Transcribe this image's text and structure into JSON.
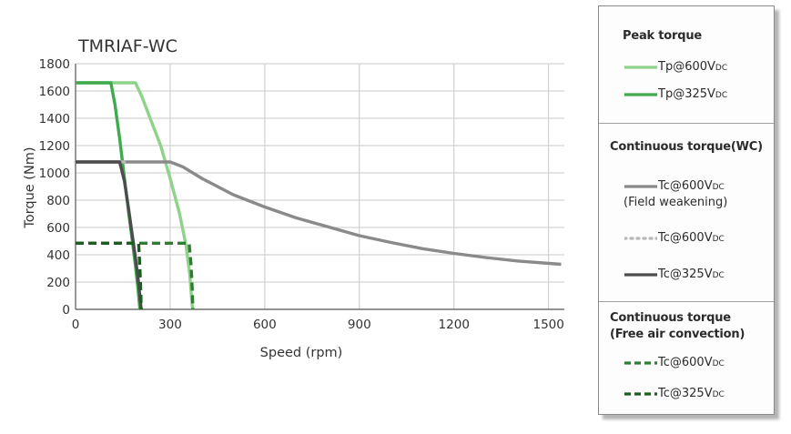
{
  "chart_data": {
    "type": "line",
    "title": "TMRIAF-WC",
    "xlabel": "Speed (rpm)",
    "ylabel": "Torque (Nm)",
    "xlim": [
      0,
      1550
    ],
    "ylim": [
      0,
      1800
    ],
    "xticks": [
      0,
      300,
      600,
      900,
      1200,
      1500
    ],
    "yticks": [
      0,
      200,
      400,
      600,
      800,
      1000,
      1200,
      1400,
      1600,
      1800
    ],
    "grid": true,
    "legend_position": "right",
    "series": [
      {
        "key": "tp600",
        "name": "Tp@600VDC",
        "group": "Peak torque",
        "color": "#8ed38a",
        "style": "solid",
        "points": [
          [
            0,
            1660
          ],
          [
            190,
            1660
          ],
          [
            210,
            1560
          ],
          [
            240,
            1380
          ],
          [
            270,
            1200
          ],
          [
            300,
            960
          ],
          [
            330,
            700
          ],
          [
            350,
            470
          ],
          [
            362,
            260
          ],
          [
            368,
            80
          ],
          [
            371,
            0
          ]
        ]
      },
      {
        "key": "tp325",
        "name": "Tp@325VDC",
        "group": "Peak torque",
        "color": "#3faa4e",
        "style": "solid",
        "points": [
          [
            0,
            1660
          ],
          [
            112,
            1660
          ],
          [
            125,
            1500
          ],
          [
            140,
            1250
          ],
          [
            155,
            960
          ],
          [
            170,
            680
          ],
          [
            180,
            500
          ],
          [
            190,
            320
          ],
          [
            198,
            150
          ],
          [
            204,
            0
          ]
        ]
      },
      {
        "key": "tc600_fw",
        "name": "Tc@600VDC (Field weakening)",
        "group": "Continuous torque(WC)",
        "color": "#8a8a8a",
        "style": "solid",
        "points": [
          [
            0,
            1080
          ],
          [
            300,
            1080
          ],
          [
            340,
            1045
          ],
          [
            400,
            960
          ],
          [
            500,
            840
          ],
          [
            600,
            750
          ],
          [
            700,
            670
          ],
          [
            800,
            605
          ],
          [
            900,
            540
          ],
          [
            1000,
            490
          ],
          [
            1100,
            445
          ],
          [
            1200,
            410
          ],
          [
            1300,
            380
          ],
          [
            1400,
            355
          ],
          [
            1540,
            330
          ]
        ]
      },
      {
        "key": "tc600",
        "name": "Tc@600VDC",
        "group": "Continuous torque(WC)",
        "color": "#b8b8b8",
        "style": "dotted",
        "points": [
          [
            0,
            1080
          ],
          [
            160,
            1080
          ]
        ]
      },
      {
        "key": "tc325",
        "name": "Tc@325VDC",
        "group": "Continuous torque(WC)",
        "color": "#4c4c4c",
        "style": "solid",
        "points": [
          [
            0,
            1080
          ],
          [
            140,
            1080
          ],
          [
            155,
            940
          ],
          [
            168,
            740
          ],
          [
            180,
            540
          ],
          [
            190,
            380
          ],
          [
            200,
            190
          ],
          [
            208,
            0
          ]
        ]
      },
      {
        "key": "tcf600",
        "name": "Tc@600VDC",
        "group": "Continuous torque (Free air convection)",
        "color": "#2e7d32",
        "style": "dashed",
        "points": [
          [
            0,
            485
          ],
          [
            360,
            485
          ],
          [
            366,
            330
          ],
          [
            370,
            150
          ],
          [
            372,
            0
          ]
        ]
      },
      {
        "key": "tcf325",
        "name": "Tc@325VDC",
        "group": "Continuous torque (Free air convection)",
        "color": "#1b5e20",
        "style": "dashed",
        "points": [
          [
            0,
            485
          ],
          [
            200,
            485
          ],
          [
            204,
            300
          ],
          [
            207,
            120
          ],
          [
            208,
            0
          ]
        ]
      }
    ]
  },
  "legend": {
    "sections": [
      {
        "title": [
          "Peak torque"
        ],
        "items": [
          {
            "series": "tp600",
            "label": "Tp@600V",
            "sub": "DC"
          },
          {
            "series": "tp325",
            "label": "Tp@325V",
            "sub": "DC"
          }
        ]
      },
      {
        "title": [
          "Continuous torque(WC)"
        ],
        "items": [
          {
            "series": "tc600_fw",
            "label": "Tc@600V",
            "sub": "DC",
            "note": "(Field weakening)"
          },
          {
            "series": "tc600",
            "label": "Tc@600V",
            "sub": "DC"
          },
          {
            "series": "tc325",
            "label": "Tc@325V",
            "sub": "DC"
          }
        ]
      },
      {
        "title": [
          "Continuous torque",
          "(Free air convection)"
        ],
        "items": [
          {
            "series": "tcf600",
            "label": "Tc@600V",
            "sub": "DC"
          },
          {
            "series": "tcf325",
            "label": "Tc@325V",
            "sub": "DC"
          }
        ]
      }
    ]
  }
}
